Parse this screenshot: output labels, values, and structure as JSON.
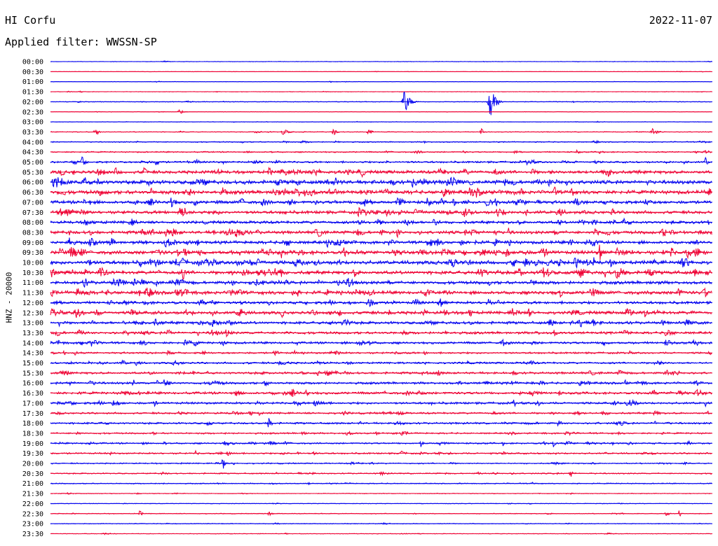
{
  "header": {
    "station": "HI Corfu",
    "date": "2022-11-07",
    "filter": "Applied filter: WWSSN-SP"
  },
  "chart_data": {
    "type": "line",
    "title": "",
    "ylabel": "HNZ - 20000",
    "row_labels": [
      "00:00",
      "00:30",
      "01:00",
      "01:30",
      "02:00",
      "02:30",
      "03:00",
      "03:30",
      "04:00",
      "04:30",
      "05:00",
      "05:30",
      "06:00",
      "06:30",
      "07:00",
      "07:30",
      "08:00",
      "08:30",
      "09:00",
      "09:30",
      "10:00",
      "10:30",
      "11:00",
      "11:30",
      "12:00",
      "12:30",
      "13:00",
      "13:30",
      "14:00",
      "14:30",
      "15:00",
      "15:30",
      "16:00",
      "16:30",
      "17:00",
      "17:30",
      "18:00",
      "18:30",
      "19:00",
      "19:30",
      "20:00",
      "20:30",
      "21:00",
      "21:30",
      "22:00",
      "22:30",
      "23:00",
      "23:30"
    ],
    "colors": [
      "#0000ee",
      "#ee0033"
    ],
    "noise_level": [
      0.4,
      0.3,
      0.4,
      0.4,
      0.6,
      0.4,
      0.4,
      0.6,
      0.8,
      1.0,
      1.5,
      2.5,
      3.0,
      3.0,
      2.5,
      2.5,
      2.2,
      2.5,
      2.5,
      3.0,
      3.0,
      2.8,
      2.5,
      2.8,
      2.2,
      2.5,
      2.2,
      2.0,
      1.8,
      1.5,
      1.5,
      1.8,
      1.8,
      2.0,
      1.8,
      1.5,
      1.5,
      1.3,
      1.3,
      1.3,
      1.0,
      1.0,
      0.8,
      0.6,
      0.5,
      0.6,
      0.6,
      0.5
    ],
    "events": [
      {
        "row": 4,
        "x": 0.535,
        "amp": 18,
        "width": 0.006
      },
      {
        "row": 4,
        "x": 0.664,
        "amp": 26,
        "width": 0.006
      },
      {
        "row": 5,
        "x": 0.195,
        "amp": 5,
        "width": 0.004
      },
      {
        "row": 7,
        "x": 0.068,
        "amp": 7,
        "width": 0.004
      },
      {
        "row": 7,
        "x": 0.352,
        "amp": 6,
        "width": 0.005
      },
      {
        "row": 7,
        "x": 0.427,
        "amp": 6,
        "width": 0.004
      },
      {
        "row": 7,
        "x": 0.48,
        "amp": 6,
        "width": 0.004
      },
      {
        "row": 7,
        "x": 0.651,
        "amp": 7,
        "width": 0.003
      },
      {
        "row": 7,
        "x": 0.91,
        "amp": 6,
        "width": 0.006
      },
      {
        "row": 10,
        "x": 0.048,
        "amp": 9,
        "width": 0.004
      },
      {
        "row": 10,
        "x": 0.16,
        "amp": 7,
        "width": 0.004
      },
      {
        "row": 10,
        "x": 0.99,
        "amp": 8,
        "width": 0.003
      },
      {
        "row": 17,
        "x": 0.524,
        "amp": 8,
        "width": 0.005
      },
      {
        "row": 19,
        "x": 0.83,
        "amp": 12,
        "width": 0.004
      },
      {
        "row": 20,
        "x": 0.82,
        "amp": 10,
        "width": 0.003
      },
      {
        "row": 21,
        "x": 0.2,
        "amp": 12,
        "width": 0.004
      },
      {
        "row": 22,
        "x": 0.32,
        "amp": 6,
        "width": 0.004
      },
      {
        "row": 25,
        "x": 0.898,
        "amp": 9,
        "width": 0.003
      },
      {
        "row": 26,
        "x": 0.448,
        "amp": 7,
        "width": 0.003
      },
      {
        "row": 28,
        "x": 0.217,
        "amp": 8,
        "width": 0.004
      },
      {
        "row": 32,
        "x": 0.125,
        "amp": 6,
        "width": 0.003
      },
      {
        "row": 32,
        "x": 0.8,
        "amp": 7,
        "width": 0.003
      },
      {
        "row": 33,
        "x": 0.73,
        "amp": 6,
        "width": 0.004
      },
      {
        "row": 34,
        "x": 0.7,
        "amp": 6,
        "width": 0.004
      },
      {
        "row": 36,
        "x": 0.33,
        "amp": 12,
        "width": 0.003
      },
      {
        "row": 36,
        "x": 0.768,
        "amp": 6,
        "width": 0.004
      },
      {
        "row": 38,
        "x": 0.56,
        "amp": 6,
        "width": 0.003
      },
      {
        "row": 38,
        "x": 0.76,
        "amp": 6,
        "width": 0.003
      },
      {
        "row": 38,
        "x": 0.963,
        "amp": 7,
        "width": 0.003
      },
      {
        "row": 39,
        "x": 0.22,
        "amp": 5,
        "width": 0.003
      },
      {
        "row": 40,
        "x": 0.26,
        "amp": 14,
        "width": 0.002
      },
      {
        "row": 41,
        "x": 0.785,
        "amp": 9,
        "width": 0.003
      },
      {
        "row": 45,
        "x": 0.135,
        "amp": 5,
        "width": 0.003
      },
      {
        "row": 45,
        "x": 0.33,
        "amp": 5,
        "width": 0.003
      },
      {
        "row": 45,
        "x": 0.93,
        "amp": 6,
        "width": 0.003
      },
      {
        "row": 45,
        "x": 0.95,
        "amp": 7,
        "width": 0.002
      }
    ]
  }
}
